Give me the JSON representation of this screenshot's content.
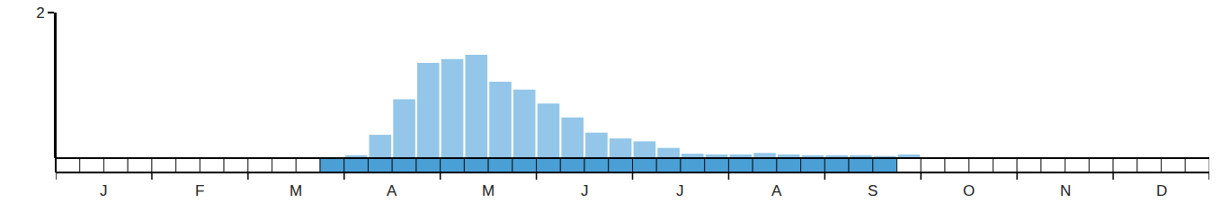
{
  "chart_data": {
    "type": "bar",
    "categories": [
      null,
      "J",
      null,
      null,
      null,
      "F",
      null,
      null,
      null,
      "M",
      null,
      null,
      null,
      "A",
      null,
      null,
      null,
      "M",
      null,
      null,
      null,
      "J",
      null,
      null,
      null,
      "J",
      null,
      null,
      null,
      "A",
      null,
      null,
      null,
      "S",
      null,
      null,
      null,
      "O",
      null,
      null,
      null,
      "N",
      null,
      null,
      null,
      "D",
      null,
      null
    ],
    "values": [
      0,
      0,
      0,
      0,
      0,
      0,
      0,
      0,
      0,
      0,
      0,
      0,
      0.04,
      0.32,
      0.81,
      1.31,
      1.36,
      1.42,
      1.05,
      0.94,
      0.75,
      0.56,
      0.35,
      0.27,
      0.23,
      0.14,
      0.06,
      0.05,
      0.05,
      0.07,
      0.05,
      0.04,
      0.04,
      0.04,
      0.03,
      0.05,
      0,
      0,
      0,
      0,
      0,
      0,
      0,
      0,
      0,
      0,
      0,
      0
    ],
    "presence": [
      false,
      false,
      false,
      false,
      false,
      false,
      false,
      false,
      false,
      false,
      false,
      true,
      true,
      true,
      true,
      true,
      true,
      true,
      true,
      true,
      true,
      true,
      true,
      true,
      true,
      true,
      true,
      true,
      true,
      true,
      true,
      true,
      true,
      true,
      true,
      false,
      false,
      false,
      false,
      false,
      false,
      false,
      false,
      false,
      false,
      false,
      false,
      false
    ],
    "color": "#93c6e8",
    "presence_color": "#4a9fd5",
    "ylim": [
      0,
      2
    ],
    "yticks": [
      2
    ],
    "grid": false
  }
}
